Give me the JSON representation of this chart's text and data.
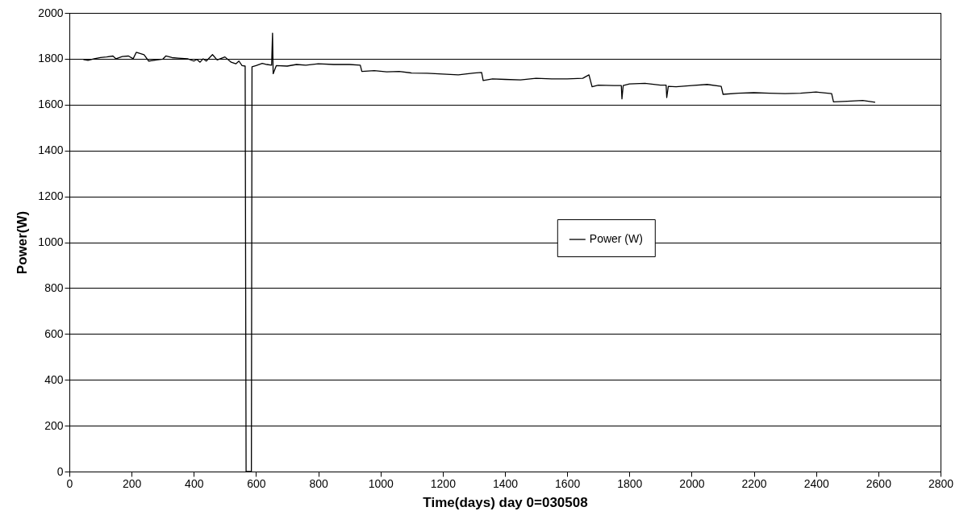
{
  "chart_data": {
    "type": "line",
    "xlabel": "Time(days)  day 0=030508",
    "ylabel": "Power(W)",
    "xlim": [
      0,
      2800
    ],
    "xticks": [
      0,
      200,
      400,
      600,
      800,
      1000,
      1200,
      1400,
      1600,
      1800,
      2000,
      2200,
      2400,
      2600,
      2800
    ],
    "ylim": [
      0,
      2000
    ],
    "yticks": [
      0,
      200,
      400,
      600,
      800,
      1000,
      1200,
      1400,
      1600,
      1800,
      2000
    ],
    "grid": "y",
    "legend": "right",
    "marker": "none",
    "line_style": "solid",
    "series": [
      {
        "name": "Power (W)",
        "color": "#000000",
        "x": [
          45,
          60,
          80,
          100,
          120,
          140,
          150,
          170,
          190,
          205,
          215,
          240,
          255,
          280,
          300,
          310,
          330,
          350,
          380,
          400,
          410,
          420,
          430,
          440,
          460,
          475,
          500,
          520,
          535,
          545,
          555,
          565,
          568,
          585,
          587,
          600,
          620,
          635,
          650,
          653,
          655,
          665,
          700,
          730,
          760,
          800,
          850,
          900,
          935,
          940,
          980,
          1020,
          1060,
          1100,
          1150,
          1200,
          1250,
          1300,
          1325,
          1330,
          1360,
          1400,
          1450,
          1500,
          1550,
          1600,
          1650,
          1670,
          1680,
          1700,
          1750,
          1774,
          1776,
          1780,
          1800,
          1850,
          1900,
          1918,
          1920,
          1925,
          1950,
          2000,
          2050,
          2095,
          2101,
          2150,
          2200,
          2250,
          2300,
          2350,
          2400,
          2450,
          2456,
          2500,
          2550,
          2590
        ],
        "values": [
          1797,
          1793,
          1800,
          1805,
          1808,
          1812,
          1800,
          1810,
          1812,
          1800,
          1828,
          1818,
          1790,
          1795,
          1798,
          1812,
          1805,
          1803,
          1800,
          1790,
          1797,
          1785,
          1800,
          1790,
          1818,
          1795,
          1808,
          1785,
          1778,
          1790,
          1770,
          1768,
          0,
          0,
          1765,
          1770,
          1780,
          1775,
          1772,
          1912,
          1735,
          1770,
          1768,
          1775,
          1772,
          1778,
          1775,
          1775,
          1772,
          1745,
          1748,
          1743,
          1745,
          1738,
          1737,
          1733,
          1730,
          1738,
          1740,
          1705,
          1712,
          1710,
          1708,
          1715,
          1712,
          1712,
          1715,
          1730,
          1678,
          1685,
          1683,
          1683,
          1625,
          1683,
          1690,
          1693,
          1685,
          1685,
          1631,
          1680,
          1678,
          1683,
          1688,
          1680,
          1645,
          1650,
          1652,
          1650,
          1648,
          1650,
          1655,
          1648,
          1612,
          1615,
          1618,
          1610
        ]
      }
    ]
  }
}
